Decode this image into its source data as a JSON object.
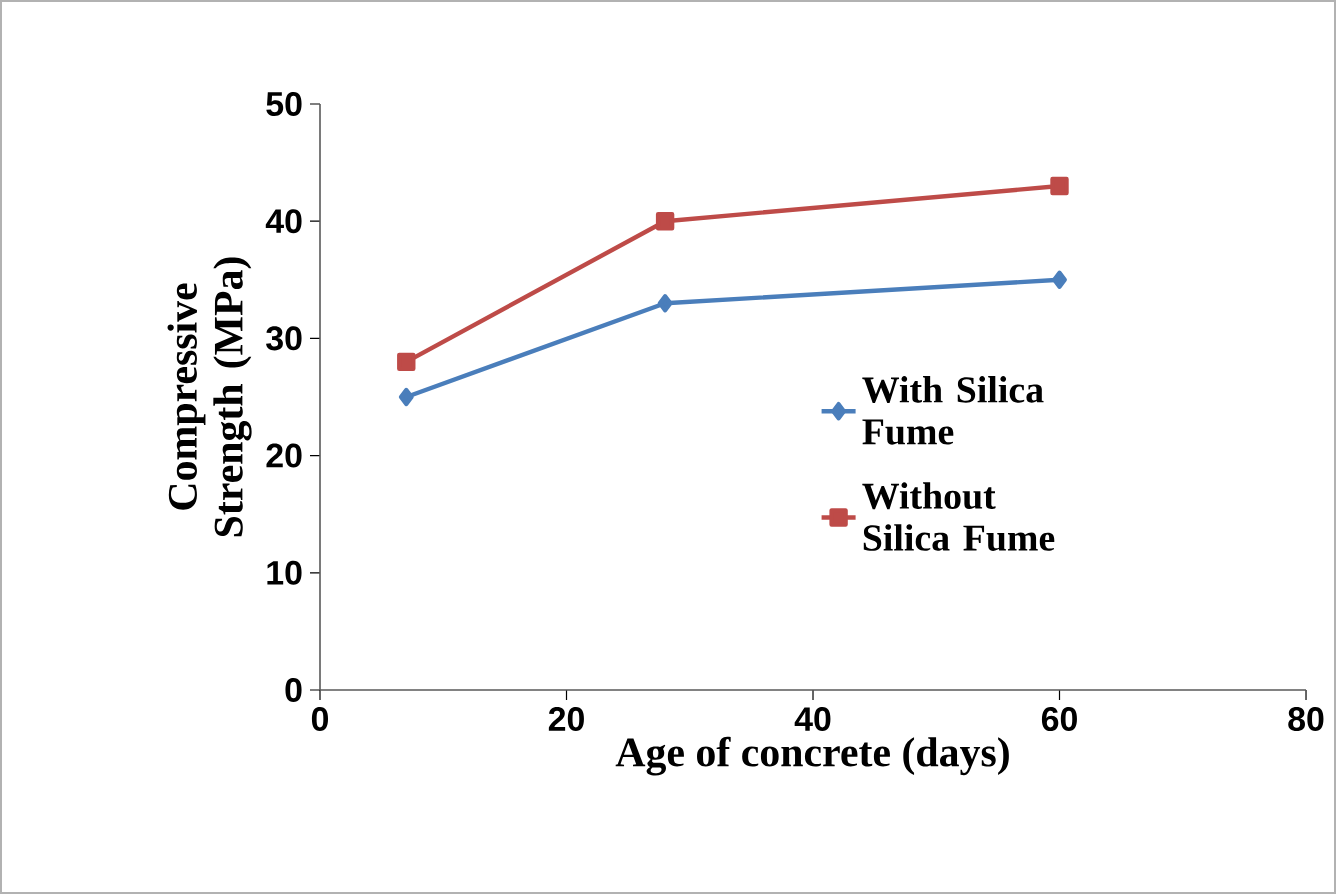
{
  "chart_data": {
    "type": "line",
    "xlabel": "Age of concrete (days)",
    "ylabel": "Compressive Strength (MPa)",
    "series": [
      {
        "name": "With Silica Fume",
        "color": "#4a7ebb",
        "marker": "diamond",
        "x": [
          7,
          28,
          60
        ],
        "values": [
          25,
          33,
          35
        ]
      },
      {
        "name": "Without Silica Fume",
        "color": "#be4b48",
        "marker": "square",
        "x": [
          7,
          28,
          60
        ],
        "values": [
          28,
          40,
          43
        ]
      }
    ],
    "xlim": [
      0,
      80
    ],
    "xticks": [
      0,
      20,
      40,
      60,
      80
    ],
    "ylim": [
      0,
      50
    ],
    "yticks": [
      0,
      10,
      20,
      30,
      40,
      50
    ],
    "grid": false,
    "legend": "right",
    "line_style": "solid"
  }
}
